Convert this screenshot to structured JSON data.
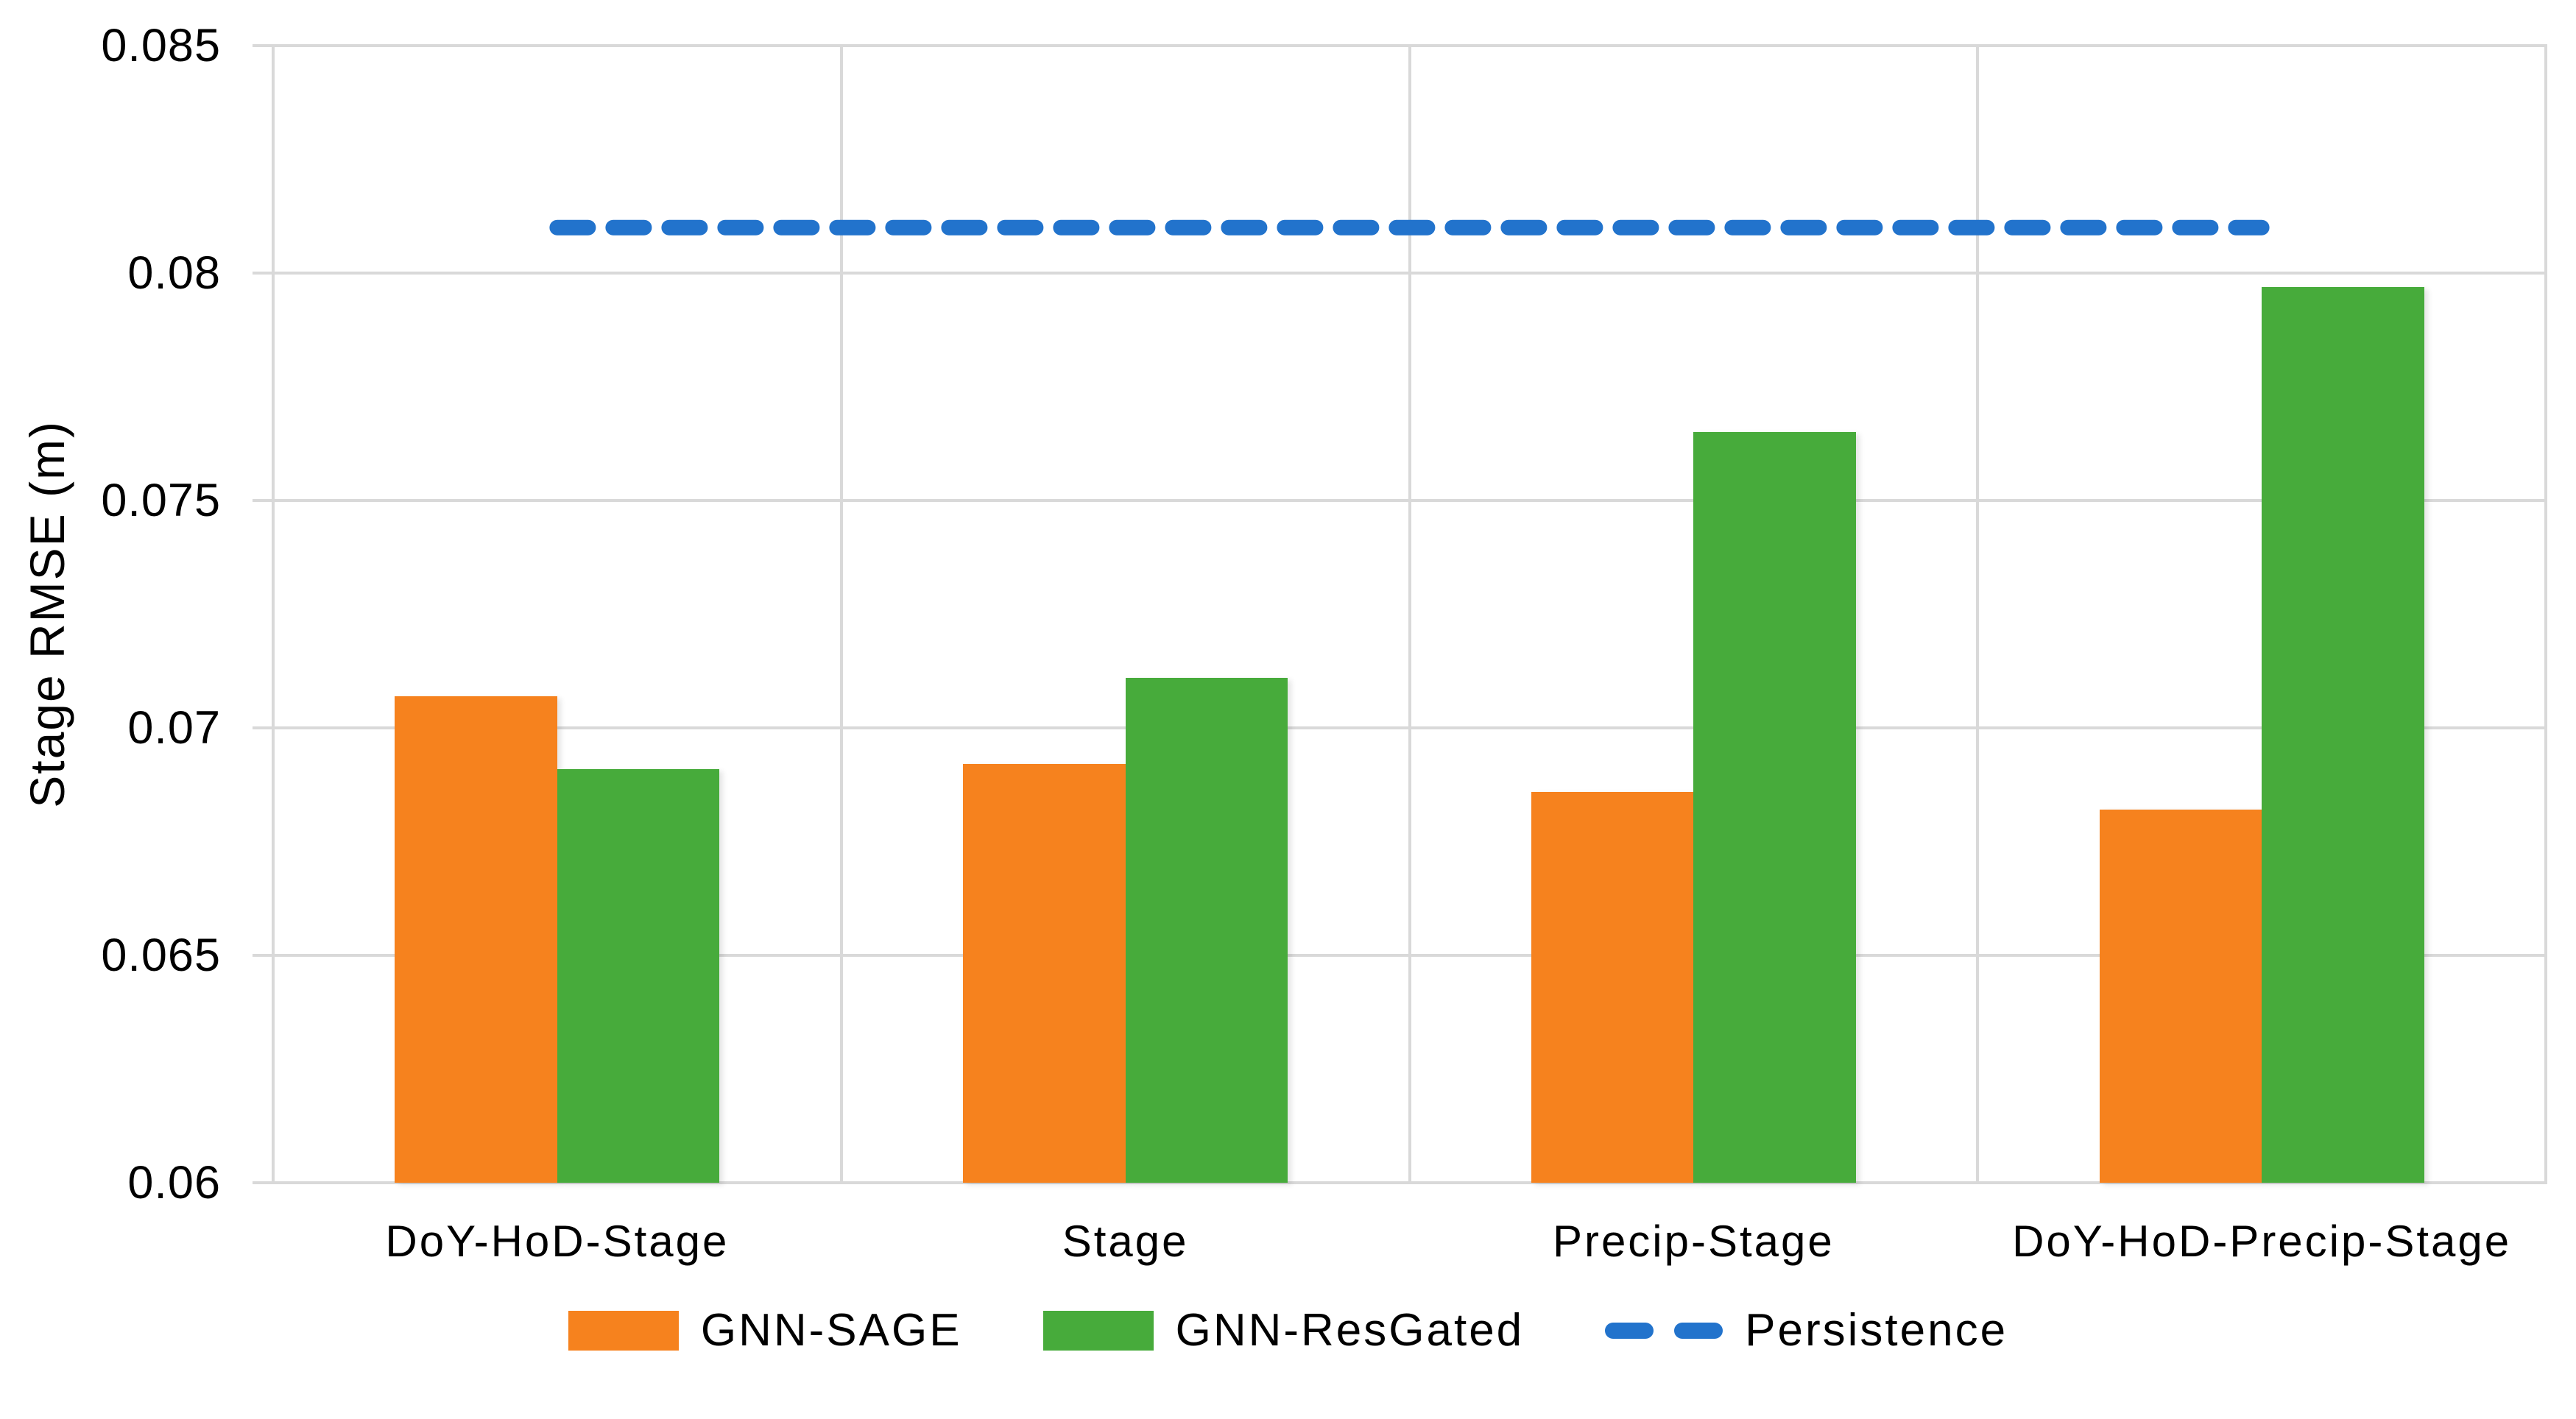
{
  "chart_data": {
    "type": "bar",
    "title": "",
    "xlabel": "",
    "ylabel": "Stage RMSE (m)",
    "categories": [
      "DoY-HoD-Stage",
      "Stage",
      "Precip-Stage",
      "DoY-HoD-Precip-Stage"
    ],
    "series": [
      {
        "name": "GNN-SAGE",
        "type": "bar",
        "color": "#F6821E",
        "values": [
          0.0707,
          0.0692,
          0.0686,
          0.0682
        ]
      },
      {
        "name": "GNN-ResGated",
        "type": "bar",
        "color": "#47AB3B",
        "values": [
          0.0691,
          0.0711,
          0.0765,
          0.0797
        ]
      },
      {
        "name": "Persistence",
        "type": "dashed-line",
        "color": "#2273CC",
        "value": 0.081
      }
    ],
    "ylim": [
      0.06,
      0.085
    ],
    "ytick_step": 0.005,
    "yticks": [
      0.085,
      0.08,
      0.075,
      0.07,
      0.065,
      0.06
    ],
    "ytick_labels": [
      "0.085",
      "0.08",
      "0.075",
      "0.07",
      "0.065",
      "0.06"
    ],
    "grid": "horizontal gridlines at every y tick, vertical gridlines at category boundaries, light gray plot border",
    "grid_color": "#D9D9D9",
    "text_color": "#000000",
    "background_color": "#FFFFFF",
    "legend_position": "bottom-center",
    "bar_gap_within_pair": 0,
    "persistence_line_extent": "from first category center to last category center"
  }
}
